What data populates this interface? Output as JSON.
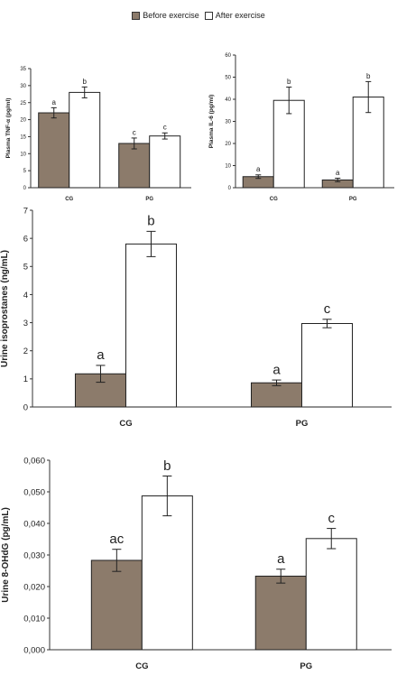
{
  "legend": {
    "before_label": "Before exercise",
    "after_label": "After exercise",
    "before_color": "#8c7b6b",
    "after_color": "#ffffff"
  },
  "chart_data": [
    {
      "type": "bar",
      "categories": [
        "CG",
        "PG"
      ],
      "ylabel": "Plasma TNF-α (pg/ml)",
      "ylim": [
        0,
        35
      ],
      "yticks": [
        "0",
        "5",
        "10",
        "15",
        "20",
        "25",
        "30",
        "35"
      ],
      "series": [
        {
          "name": "Before exercise",
          "values": [
            22,
            13
          ],
          "errors": [
            1.5,
            1.6
          ],
          "letters": [
            "a",
            "c"
          ]
        },
        {
          "name": "After exercise",
          "values": [
            28,
            15.2
          ],
          "errors": [
            1.6,
            0.9
          ],
          "letters": [
            "b",
            "c"
          ]
        }
      ]
    },
    {
      "type": "bar",
      "categories": [
        "CG",
        "PG"
      ],
      "ylabel": "Plasma IL-6 (pg/ml)",
      "ylim": [
        0,
        60
      ],
      "yticks": [
        "0",
        "10",
        "20",
        "30",
        "40",
        "50",
        "60"
      ],
      "series": [
        {
          "name": "Before exercise",
          "values": [
            5,
            3.5
          ],
          "errors": [
            0.8,
            0.8
          ],
          "letters": [
            "a",
            "a"
          ]
        },
        {
          "name": "After exercise",
          "values": [
            39.5,
            41
          ],
          "errors": [
            6,
            7
          ],
          "letters": [
            "b",
            "b"
          ]
        }
      ]
    },
    {
      "type": "bar",
      "categories": [
        "CG",
        "PG"
      ],
      "ylabel": "Urine isoprostanes (ng/mL)",
      "ylim": [
        0,
        7
      ],
      "yticks": [
        "0",
        "1",
        "2",
        "3",
        "4",
        "5",
        "6",
        "7"
      ],
      "series": [
        {
          "name": "Before exercise",
          "values": [
            1.18,
            0.86
          ],
          "errors": [
            0.3,
            0.1
          ],
          "letters": [
            "a",
            "a"
          ]
        },
        {
          "name": "After exercise",
          "values": [
            5.8,
            2.97
          ],
          "errors": [
            0.45,
            0.15
          ],
          "letters": [
            "b",
            "c"
          ]
        }
      ]
    },
    {
      "type": "bar",
      "categories": [
        "CG",
        "PG"
      ],
      "ylabel": "Urine 8-OHdG (pg/mL)",
      "ylim": [
        0,
        0.06
      ],
      "yticks": [
        "0,000",
        "0,010",
        "0,020",
        "0,030",
        "0,040",
        "0,050",
        "0,060"
      ],
      "series": [
        {
          "name": "Before exercise",
          "values": [
            0.0283,
            0.0233
          ],
          "errors": [
            0.0035,
            0.0022
          ],
          "letters": [
            "ac",
            "a"
          ]
        },
        {
          "name": "After exercise",
          "values": [
            0.0487,
            0.0352
          ],
          "errors": [
            0.0063,
            0.0032
          ],
          "letters": [
            "b",
            "c"
          ]
        }
      ]
    }
  ]
}
